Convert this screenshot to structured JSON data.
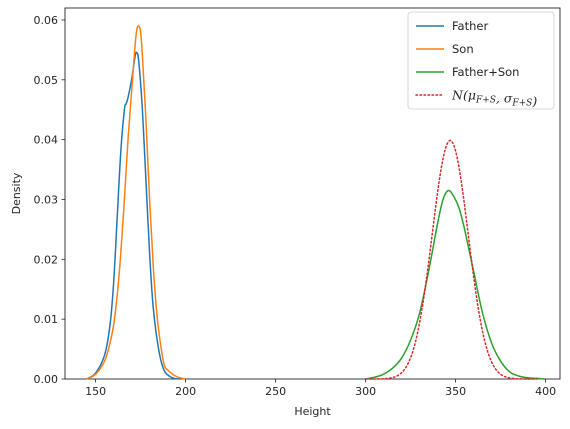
{
  "chart_data": {
    "type": "line",
    "xlabel": "Height",
    "ylabel": "Density",
    "xlim": [
      133,
      408
    ],
    "ylim": [
      0,
      0.062
    ],
    "xticks": [
      150,
      200,
      250,
      300,
      350,
      400
    ],
    "xtick_labels": [
      "150",
      "200",
      "250",
      "300",
      "350",
      "400"
    ],
    "yticks": [
      0,
      0.01,
      0.02,
      0.03,
      0.04,
      0.05,
      0.06
    ],
    "ytick_labels": [
      "0.00",
      "0.01",
      "0.02",
      "0.03",
      "0.04",
      "0.05",
      "0.06"
    ],
    "grid": false,
    "legend_position": "top-right",
    "series": [
      {
        "name": "Father",
        "color": "#1f77b4",
        "style": "solid",
        "x": [
          145,
          150,
          155,
          158,
          160,
          162,
          164,
          166,
          167,
          168,
          170,
          172,
          173,
          174,
          176,
          178,
          180,
          182,
          185,
          188,
          192,
          196
        ],
        "y": [
          0.0,
          0.001,
          0.004,
          0.009,
          0.016,
          0.027,
          0.038,
          0.045,
          0.046,
          0.047,
          0.05,
          0.054,
          0.0545,
          0.053,
          0.045,
          0.033,
          0.021,
          0.012,
          0.005,
          0.0015,
          0.0003,
          0.0
        ]
      },
      {
        "name": "Son",
        "color": "#ff7f0e",
        "style": "solid",
        "x": [
          145,
          150,
          155,
          158,
          160,
          162,
          164,
          166,
          168,
          170,
          172,
          173,
          174,
          175,
          176,
          178,
          180,
          182,
          184,
          186,
          188,
          190,
          195,
          200
        ],
        "y": [
          0.0,
          0.0008,
          0.003,
          0.006,
          0.009,
          0.014,
          0.021,
          0.03,
          0.04,
          0.048,
          0.056,
          0.0585,
          0.059,
          0.058,
          0.054,
          0.043,
          0.03,
          0.019,
          0.011,
          0.006,
          0.0025,
          0.0015,
          0.0004,
          0.0
        ]
      },
      {
        "name": "Father+Son",
        "color": "#2ca02c",
        "style": "solid",
        "x": [
          300,
          305,
          310,
          315,
          320,
          325,
          330,
          335,
          340,
          343,
          346,
          349,
          352,
          355,
          360,
          365,
          370,
          375,
          380,
          385,
          390,
          395,
          400
        ],
        "y": [
          0.0,
          0.0003,
          0.0008,
          0.0018,
          0.0035,
          0.0065,
          0.011,
          0.018,
          0.026,
          0.03,
          0.0315,
          0.0305,
          0.0285,
          0.025,
          0.018,
          0.011,
          0.006,
          0.003,
          0.0012,
          0.0005,
          0.0002,
          0.0001,
          0.0
        ]
      },
      {
        "name": "N(μF+S, σF+S)",
        "color": "#d62728",
        "style": "dotted",
        "distribution": "normal",
        "mean": 347,
        "std": 10,
        "x_range": [
          300,
          395
        ]
      }
    ]
  }
}
